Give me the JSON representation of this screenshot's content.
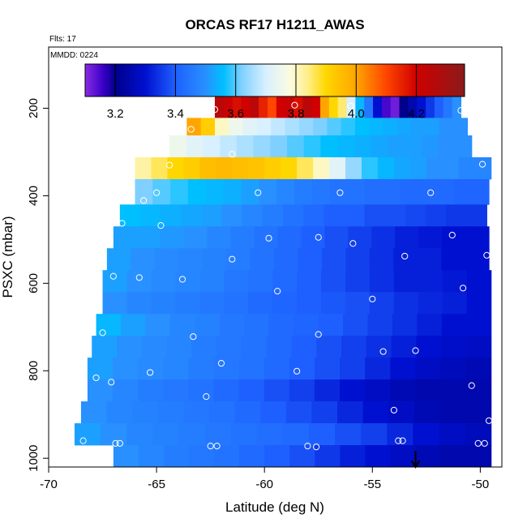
{
  "chart_data": {
    "type": "heatmap",
    "title": "ORCAS RF17 H1211_AWAS",
    "flights_label": "Flts: 17",
    "date_label": "MMDD: 0224",
    "xlabel": "Latitude (deg N)",
    "ylabel": "PSXC (mbar)",
    "xlim": [
      -70,
      -49
    ],
    "ylim": [
      1020,
      60
    ],
    "y_reversed": true,
    "x_ticks": [
      -70,
      -65,
      -60,
      -55,
      -50
    ],
    "y_ticks": [
      200,
      400,
      600,
      800,
      1000
    ],
    "colorbar": {
      "range": [
        3.1,
        4.36
      ],
      "ticks": [
        3.2,
        3.4,
        3.6,
        3.8,
        4.0,
        4.2
      ],
      "tick_labels": [
        "3.2",
        "3.4",
        "3.6",
        "3.8",
        "4.0",
        "4.2"
      ],
      "stops": [
        {
          "v": 3.1,
          "c": "#8a2be2"
        },
        {
          "v": 3.16,
          "c": "#3a00c8"
        },
        {
          "v": 3.2,
          "c": "#00008b"
        },
        {
          "v": 3.3,
          "c": "#0010d0"
        },
        {
          "v": 3.4,
          "c": "#1e60ff"
        },
        {
          "v": 3.5,
          "c": "#2890ff"
        },
        {
          "v": 3.56,
          "c": "#00bfff"
        },
        {
          "v": 3.62,
          "c": "#80d0ff"
        },
        {
          "v": 3.7,
          "c": "#d8f0ff"
        },
        {
          "v": 3.78,
          "c": "#fbfbe0"
        },
        {
          "v": 3.84,
          "c": "#ffee88"
        },
        {
          "v": 3.9,
          "c": "#ffd700"
        },
        {
          "v": 4.0,
          "c": "#ffa500"
        },
        {
          "v": 4.1,
          "c": "#ff4500"
        },
        {
          "v": 4.2,
          "c": "#d00000"
        },
        {
          "v": 4.36,
          "c": "#8b1a1a"
        }
      ]
    },
    "bands": [
      {
        "p0": 172,
        "p1": 222,
        "x0": -62.3,
        "x1": -50.9,
        "vals": [
          4.25,
          4.22,
          4.18,
          4.2,
          4.25,
          4.15,
          4.1,
          4.2,
          4.22,
          4.18,
          4.25,
          4.2,
          4.0,
          3.9,
          3.85,
          3.7,
          3.55,
          3.45,
          3.3,
          3.15,
          3.12,
          3.2,
          3.25,
          3.3,
          3.35,
          3.4,
          3.45,
          3.5
        ]
      },
      {
        "p0": 222,
        "p1": 262,
        "x0": -63.6,
        "x1": -50.6,
        "vals": [
          4.0,
          3.92,
          3.8,
          3.75,
          3.72,
          3.7,
          3.68,
          3.66,
          3.64,
          3.62,
          3.6,
          3.58,
          3.56,
          3.55,
          3.54,
          3.53,
          3.52,
          3.52,
          3.5,
          3.5
        ]
      },
      {
        "p0": 262,
        "p1": 312,
        "x0": -64.4,
        "x1": -50.4,
        "vals": [
          3.75,
          3.72,
          3.7,
          3.68,
          3.66,
          3.64,
          3.62,
          3.6,
          3.58,
          3.56,
          3.55,
          3.54,
          3.53,
          3.52,
          3.52,
          3.51,
          3.5,
          3.5
        ]
      },
      {
        "p0": 312,
        "p1": 362,
        "x0": -66.0,
        "x1": -49.5,
        "vals": [
          3.82,
          3.86,
          3.9,
          3.92,
          3.95,
          3.96,
          3.95,
          3.94,
          3.92,
          3.9,
          3.86,
          3.8,
          3.72,
          3.64,
          3.58,
          3.55,
          3.53,
          3.52,
          3.5,
          3.5,
          3.48,
          3.48
        ]
      },
      {
        "p0": 362,
        "p1": 420,
        "x0": -66.0,
        "x1": -49.6,
        "vals": [
          3.62,
          3.6,
          3.58,
          3.56,
          3.55,
          3.54,
          3.52,
          3.5,
          3.48,
          3.46,
          3.45,
          3.44,
          3.44,
          3.43,
          3.43,
          3.42,
          3.42,
          3.42,
          3.41,
          3.41
        ]
      },
      {
        "p0": 420,
        "p1": 470,
        "x0": -66.7,
        "x1": -49.7,
        "vals": [
          3.56,
          3.55,
          3.54,
          3.53,
          3.52,
          3.5,
          3.48,
          3.46,
          3.44,
          3.42,
          3.4,
          3.4,
          3.38,
          3.38,
          3.37,
          3.36,
          3.35,
          3.35
        ]
      },
      {
        "p0": 470,
        "p1": 520,
        "x0": -67.0,
        "x1": -49.6,
        "vals": [
          3.52,
          3.52,
          3.51,
          3.5,
          3.48,
          3.46,
          3.44,
          3.42,
          3.4,
          3.38,
          3.36,
          3.34,
          3.32,
          3.31,
          3.3,
          3.3
        ]
      },
      {
        "p0": 520,
        "p1": 570,
        "x0": -67.3,
        "x1": -49.6,
        "vals": [
          3.52,
          3.5,
          3.49,
          3.48,
          3.47,
          3.46,
          3.44,
          3.42,
          3.4,
          3.38,
          3.36,
          3.34,
          3.32,
          3.32,
          3.3,
          3.3
        ]
      },
      {
        "p0": 570,
        "p1": 620,
        "x0": -67.5,
        "x1": -49.5,
        "vals": [
          3.52,
          3.5,
          3.49,
          3.48,
          3.47,
          3.45,
          3.44,
          3.42,
          3.4,
          3.38,
          3.36,
          3.34,
          3.32,
          3.32,
          3.31,
          3.3
        ]
      },
      {
        "p0": 620,
        "p1": 670,
        "x0": -67.5,
        "x1": -49.5,
        "vals": [
          3.5,
          3.48,
          3.47,
          3.46,
          3.45,
          3.44,
          3.42,
          3.41,
          3.4,
          3.39,
          3.38,
          3.36,
          3.34,
          3.33,
          3.32,
          3.3
        ]
      },
      {
        "p0": 670,
        "p1": 720,
        "x0": -67.8,
        "x1": -49.5,
        "vals": [
          3.55,
          3.52,
          3.5,
          3.48,
          3.47,
          3.45,
          3.44,
          3.42,
          3.41,
          3.4,
          3.38,
          3.36,
          3.34,
          3.32,
          3.3,
          3.3
        ]
      },
      {
        "p0": 720,
        "p1": 770,
        "x0": -68.0,
        "x1": -49.5,
        "vals": [
          3.52,
          3.5,
          3.49,
          3.48,
          3.46,
          3.45,
          3.44,
          3.42,
          3.4,
          3.38,
          3.36,
          3.34,
          3.32,
          3.3,
          3.29,
          3.28
        ]
      },
      {
        "p0": 770,
        "p1": 820,
        "x0": -68.2,
        "x1": -49.5,
        "vals": [
          3.52,
          3.5,
          3.49,
          3.48,
          3.46,
          3.45,
          3.44,
          3.42,
          3.4,
          3.38,
          3.36,
          3.33,
          3.3,
          3.28,
          3.27,
          3.26
        ]
      },
      {
        "p0": 820,
        "p1": 870,
        "x0": -68.2,
        "x1": -49.5,
        "vals": [
          3.5,
          3.48,
          3.46,
          3.45,
          3.44,
          3.42,
          3.4,
          3.38,
          3.36,
          3.33,
          3.3,
          3.28,
          3.26,
          3.25,
          3.25,
          3.25
        ]
      },
      {
        "p0": 870,
        "p1": 920,
        "x0": -68.5,
        "x1": -49.5,
        "vals": [
          3.5,
          3.48,
          3.47,
          3.46,
          3.45,
          3.44,
          3.42,
          3.4,
          3.38,
          3.36,
          3.33,
          3.3,
          3.28,
          3.26,
          3.25,
          3.25
        ]
      },
      {
        "p0": 920,
        "p1": 970,
        "x0": -68.8,
        "x1": -49.5,
        "vals": [
          3.52,
          3.5,
          3.48,
          3.47,
          3.46,
          3.45,
          3.44,
          3.43,
          3.42,
          3.4,
          3.38,
          3.36,
          3.33,
          3.3,
          3.28,
          3.27
        ]
      },
      {
        "p0": 970,
        "p1": 1020,
        "x0": -67.0,
        "x1": -49.5,
        "vals": [
          3.5,
          3.48,
          3.46,
          3.45,
          3.44,
          3.42,
          3.4,
          3.38,
          3.35,
          3.32,
          3.3,
          3.28,
          3.26,
          3.25,
          3.25
        ]
      }
    ],
    "sample_points": [
      [
        -62.3,
        203
      ],
      [
        -58.6,
        193
      ],
      [
        -56.0,
        195
      ],
      [
        -50.9,
        205
      ],
      [
        -63.4,
        248
      ],
      [
        -64.4,
        330
      ],
      [
        -61.5,
        305
      ],
      [
        -49.9,
        328
      ],
      [
        -65.0,
        393
      ],
      [
        -65.6,
        411
      ],
      [
        -60.3,
        393
      ],
      [
        -56.5,
        393
      ],
      [
        -52.3,
        393
      ],
      [
        -66.6,
        463
      ],
      [
        -64.8,
        468
      ],
      [
        -59.8,
        497
      ],
      [
        -57.5,
        495
      ],
      [
        -55.9,
        509
      ],
      [
        -51.3,
        490
      ],
      [
        -53.5,
        538
      ],
      [
        -61.5,
        545
      ],
      [
        -49.7,
        536
      ],
      [
        -67.0,
        584
      ],
      [
        -65.8,
        587
      ],
      [
        -63.8,
        591
      ],
      [
        -59.4,
        618
      ],
      [
        -55.0,
        636
      ],
      [
        -50.8,
        611
      ],
      [
        -67.5,
        713
      ],
      [
        -63.3,
        722
      ],
      [
        -57.5,
        717
      ],
      [
        -54.5,
        756
      ],
      [
        -53.0,
        754
      ],
      [
        -62.0,
        783
      ],
      [
        -58.5,
        801
      ],
      [
        -65.3,
        804
      ],
      [
        -67.8,
        816
      ],
      [
        -67.1,
        826
      ],
      [
        -50.4,
        834
      ],
      [
        -62.7,
        859
      ],
      [
        -54.0,
        890
      ],
      [
        -49.6,
        914
      ],
      [
        -68.4,
        960
      ],
      [
        -66.9,
        966
      ],
      [
        -66.7,
        966
      ],
      [
        -62.5,
        972
      ],
      [
        -62.2,
        972
      ],
      [
        -58.0,
        972
      ],
      [
        -57.6,
        974
      ],
      [
        -53.8,
        960
      ],
      [
        -53.6,
        960
      ],
      [
        -50.1,
        966
      ],
      [
        -49.8,
        966
      ]
    ],
    "arrow_latitude": -53.0
  }
}
